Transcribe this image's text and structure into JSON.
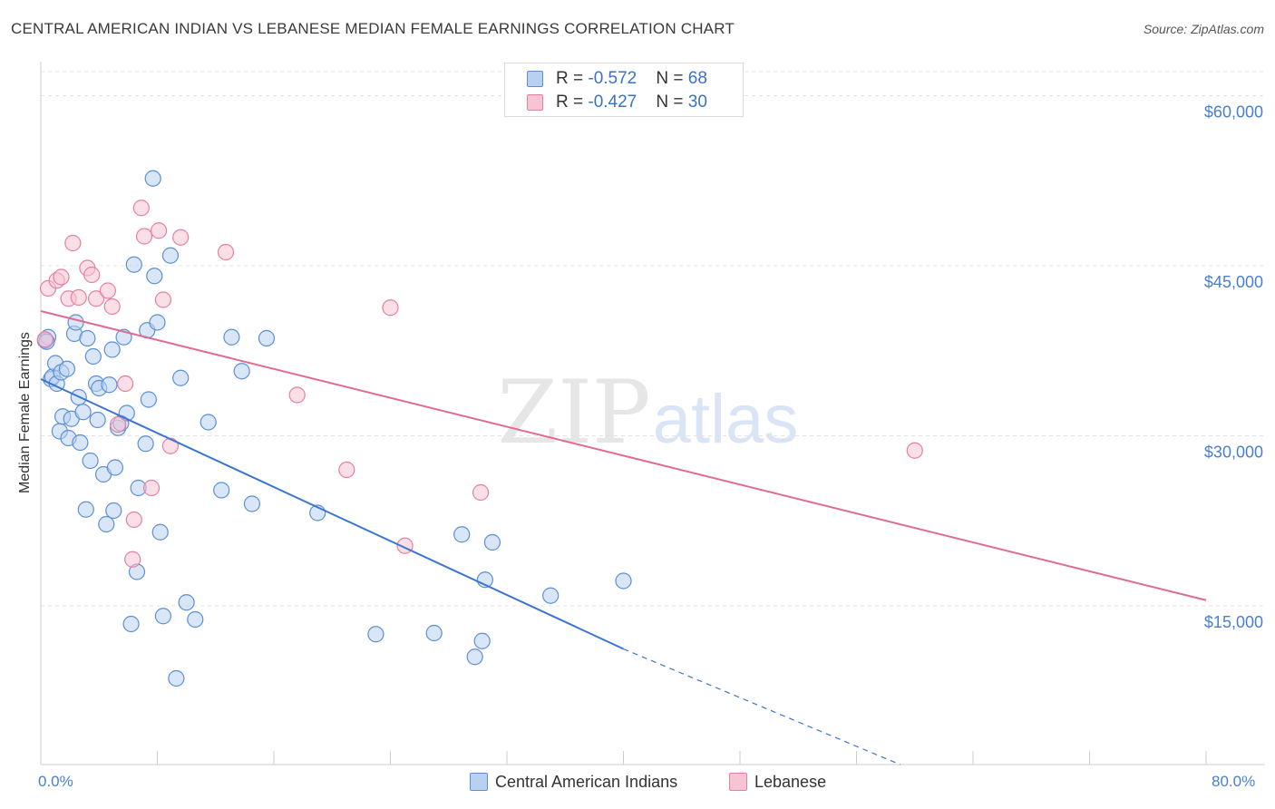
{
  "title": "CENTRAL AMERICAN INDIAN VS LEBANESE MEDIAN FEMALE EARNINGS CORRELATION CHART",
  "source": "Source: ZipAtlas.com",
  "watermark": {
    "zip": "ZIP",
    "atlas": "atlas"
  },
  "legend_top": {
    "rows": [
      {
        "r_label": "R = ",
        "r_value": "-0.572",
        "n_label": "N = ",
        "n_value": "68"
      },
      {
        "r_label": "R = ",
        "r_value": "-0.427",
        "n_label": "N = ",
        "n_value": "30"
      }
    ]
  },
  "chart_data": {
    "type": "scatter",
    "title": "CENTRAL AMERICAN INDIAN VS LEBANESE MEDIAN FEMALE EARNINGS CORRELATION CHART",
    "xlabel": "",
    "ylabel": "Median Female Earnings",
    "xlim": [
      0,
      80
    ],
    "ylim": [
      1000,
      63000
    ],
    "x_tick_labels": [
      {
        "value": 0,
        "label": "0.0%"
      },
      {
        "value": 80,
        "label": "80.0%"
      }
    ],
    "y_ticks": [
      {
        "value": 15000,
        "label": "$15,000"
      },
      {
        "value": 30000,
        "label": "$30,000"
      },
      {
        "value": 45000,
        "label": "$45,000"
      },
      {
        "value": 60000,
        "label": "$60,000"
      }
    ],
    "grid": true,
    "series": [
      {
        "name": "Central American Indians",
        "color": "#5b8fd6",
        "fill": "#b9d1f1",
        "points": [
          [
            0.3,
            38400
          ],
          [
            0.5,
            38700
          ],
          [
            0.7,
            35000
          ],
          [
            0.8,
            35200
          ],
          [
            1.0,
            36400
          ],
          [
            1.1,
            34600
          ],
          [
            1.3,
            30400
          ],
          [
            1.4,
            35600
          ],
          [
            1.5,
            31700
          ],
          [
            1.8,
            35900
          ],
          [
            1.9,
            29800
          ],
          [
            2.1,
            31500
          ],
          [
            2.3,
            39000
          ],
          [
            2.4,
            40000
          ],
          [
            2.6,
            33400
          ],
          [
            2.7,
            29400
          ],
          [
            2.9,
            32100
          ],
          [
            3.1,
            23500
          ],
          [
            3.2,
            38600
          ],
          [
            3.4,
            27800
          ],
          [
            3.6,
            37000
          ],
          [
            3.8,
            34600
          ],
          [
            3.9,
            31400
          ],
          [
            4.0,
            34200
          ],
          [
            4.3,
            26600
          ],
          [
            4.5,
            22200
          ],
          [
            4.7,
            34500
          ],
          [
            4.9,
            37600
          ],
          [
            5.0,
            23400
          ],
          [
            5.1,
            27200
          ],
          [
            5.3,
            30700
          ],
          [
            5.5,
            31100
          ],
          [
            5.7,
            38700
          ],
          [
            5.9,
            32000
          ],
          [
            6.2,
            13400
          ],
          [
            6.4,
            45100
          ],
          [
            6.6,
            18000
          ],
          [
            6.7,
            25400
          ],
          [
            7.2,
            29300
          ],
          [
            7.3,
            39300
          ],
          [
            7.4,
            33200
          ],
          [
            7.7,
            52700
          ],
          [
            7.8,
            44100
          ],
          [
            8.0,
            40000
          ],
          [
            8.2,
            21500
          ],
          [
            8.4,
            14100
          ],
          [
            8.9,
            45900
          ],
          [
            9.3,
            8600
          ],
          [
            9.6,
            35100
          ],
          [
            10.0,
            15300
          ],
          [
            10.6,
            13800
          ],
          [
            11.5,
            31200
          ],
          [
            12.4,
            25200
          ],
          [
            13.1,
            38700
          ],
          [
            13.8,
            35700
          ],
          [
            14.5,
            24000
          ],
          [
            15.5,
            38600
          ],
          [
            19.0,
            23200
          ],
          [
            23.0,
            12500
          ],
          [
            27.0,
            12600
          ],
          [
            28.9,
            21300
          ],
          [
            29.8,
            10500
          ],
          [
            30.3,
            11900
          ],
          [
            30.5,
            17300
          ],
          [
            31.0,
            20600
          ],
          [
            35.0,
            15900
          ],
          [
            40.0,
            17200
          ],
          [
            0.4,
            38300
          ]
        ]
      },
      {
        "name": "Lebanese",
        "color": "#e67fa0",
        "fill": "#f7c4d4",
        "points": [
          [
            0.3,
            38500
          ],
          [
            0.5,
            43000
          ],
          [
            1.1,
            43700
          ],
          [
            1.4,
            44000
          ],
          [
            1.9,
            42100
          ],
          [
            2.2,
            47000
          ],
          [
            2.6,
            42200
          ],
          [
            3.2,
            44800
          ],
          [
            3.5,
            44200
          ],
          [
            3.8,
            42100
          ],
          [
            4.6,
            42800
          ],
          [
            4.9,
            41400
          ],
          [
            5.3,
            31000
          ],
          [
            5.8,
            34600
          ],
          [
            6.4,
            22600
          ],
          [
            6.3,
            19100
          ],
          [
            6.9,
            50100
          ],
          [
            7.1,
            47600
          ],
          [
            7.6,
            25400
          ],
          [
            8.1,
            48100
          ],
          [
            8.4,
            42000
          ],
          [
            8.9,
            29100
          ],
          [
            9.6,
            47500
          ],
          [
            12.7,
            46200
          ],
          [
            17.6,
            33600
          ],
          [
            21.0,
            27000
          ],
          [
            24.0,
            41300
          ],
          [
            25.0,
            20300
          ],
          [
            30.2,
            25000
          ],
          [
            60.0,
            28700
          ]
        ]
      }
    ],
    "trend_lines": [
      {
        "series": "Central American Indians",
        "x_start": 0,
        "y_start": 35000,
        "x_solid_end": 40,
        "y_solid_end": 11200,
        "x_dash_end": 59,
        "y_dash_end": 1000
      },
      {
        "series": "Lebanese",
        "x_start": 0,
        "y_start": 41000,
        "x_end": 80,
        "y_end": 15500
      }
    ]
  },
  "legend_bottom": [
    {
      "label": "Central American Indians",
      "swatch_fill": "#b9d1f1",
      "swatch_border": "#5b8fd6"
    },
    {
      "label": "Lebanese",
      "swatch_fill": "#f7c4d4",
      "swatch_border": "#e67fa0"
    }
  ]
}
